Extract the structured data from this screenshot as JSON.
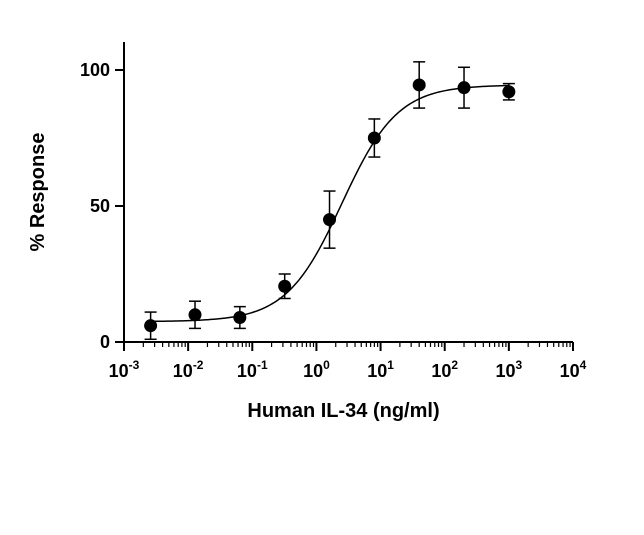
{
  "chart_data": {
    "type": "scatter",
    "title": "",
    "xlabel": "Human IL-34 (ng/ml)",
    "ylabel": "% Response",
    "xscale": "log",
    "xlim": [
      0.001,
      10000
    ],
    "ylim": [
      0,
      110
    ],
    "grid": false,
    "legend": "none",
    "x_ticks": [
      {
        "base": "10",
        "exp": "-3",
        "value": 0.001
      },
      {
        "base": "10",
        "exp": "-2",
        "value": 0.01
      },
      {
        "base": "10",
        "exp": "-1",
        "value": 0.1
      },
      {
        "base": "10",
        "exp": "0",
        "value": 1
      },
      {
        "base": "10",
        "exp": "1",
        "value": 10
      },
      {
        "base": "10",
        "exp": "2",
        "value": 100
      },
      {
        "base": "10",
        "exp": "3",
        "value": 1000
      },
      {
        "base": "10",
        "exp": "4",
        "value": 10000
      }
    ],
    "y_ticks": [
      {
        "label": "0",
        "value": 0
      },
      {
        "label": "50",
        "value": 50
      },
      {
        "label": "100",
        "value": 100
      }
    ],
    "points": [
      {
        "x": 0.0026,
        "y": 6,
        "err": 5
      },
      {
        "x": 0.0128,
        "y": 10,
        "err": 5
      },
      {
        "x": 0.064,
        "y": 9,
        "err": 4
      },
      {
        "x": 0.32,
        "y": 20.5,
        "err": 4.5
      },
      {
        "x": 1.6,
        "y": 45,
        "err": 10.5
      },
      {
        "x": 8,
        "y": 75,
        "err": 7
      },
      {
        "x": 40,
        "y": 94.5,
        "err": 8.5
      },
      {
        "x": 200,
        "y": 93.5,
        "err": 7.5
      },
      {
        "x": 1000,
        "y": 92,
        "err": 3
      }
    ],
    "fit": {
      "model": "4PL",
      "bottom": 7.5,
      "top": 94.5,
      "ec50": 2.5,
      "hill": 1.0
    },
    "colors": {
      "axis": "#000000",
      "points": "#000000",
      "curve": "#000000"
    }
  }
}
